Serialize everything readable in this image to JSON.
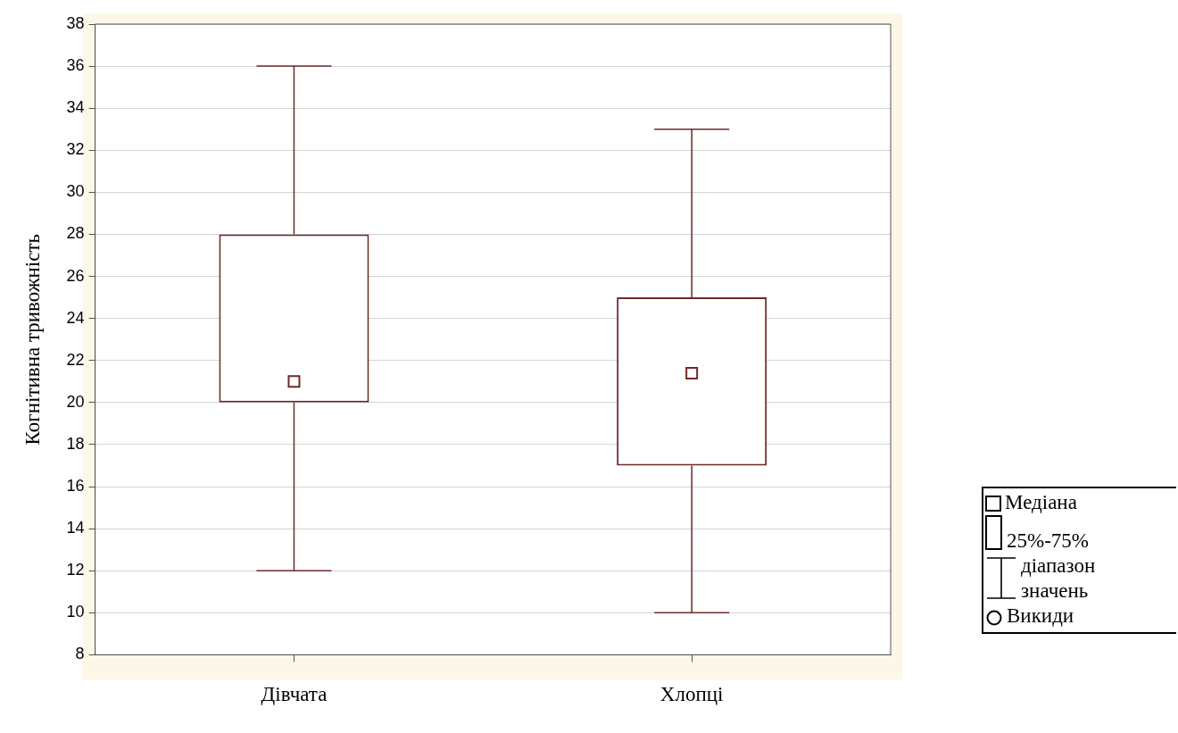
{
  "chart_data": {
    "type": "box",
    "ylabel": "Когнітивна тривожність",
    "categories": [
      "Дівчата",
      "Хлопці"
    ],
    "boxes": [
      {
        "low": 12,
        "q1": 20,
        "median": 21,
        "q3": 28,
        "high": 36
      },
      {
        "low": 10,
        "q1": 17,
        "median": 21.4,
        "q3": 25,
        "high": 33
      }
    ],
    "color": "#6e2a2a",
    "ylim": [
      8,
      38
    ],
    "yticks": [
      8,
      10,
      12,
      14,
      16,
      18,
      20,
      22,
      24,
      26,
      28,
      30,
      32,
      34,
      36,
      38
    ],
    "grid": "y",
    "annotations": [
      "Медіана",
      "25%-75%",
      "діапазон значень",
      "Викиди"
    ]
  }
}
